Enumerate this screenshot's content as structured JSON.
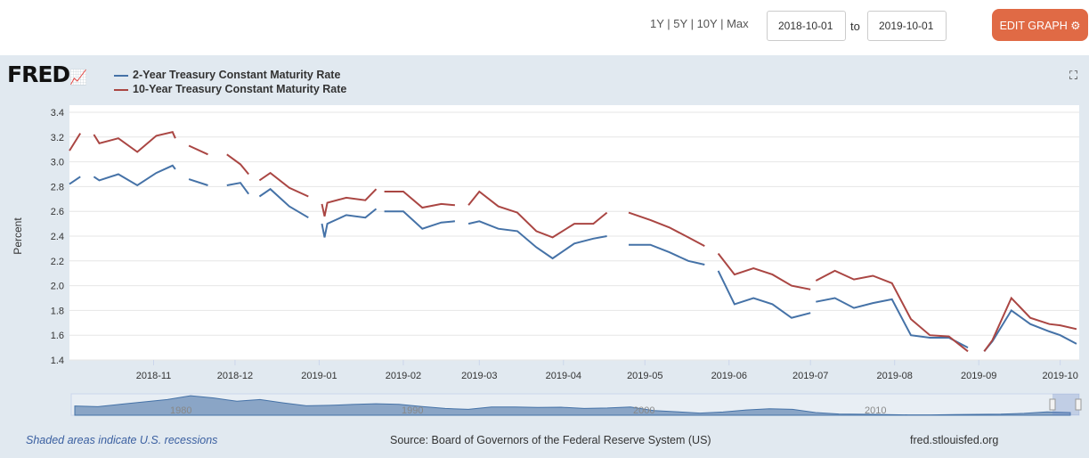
{
  "controls": {
    "ranges": [
      "1Y",
      "5Y",
      "10Y",
      "Max"
    ],
    "start_date": "2018-10-01",
    "to_label": "to",
    "end_date": "2019-10-01",
    "edit_label": "EDIT GRAPH",
    "edit_icon": "gear-icon"
  },
  "logo": "FRED",
  "fullscreen_icon": "expand-icon",
  "footer": {
    "recessions": "Shaded areas indicate U.S. recessions",
    "source": "Source: Board of Governors of the Federal Reserve System (US)",
    "site": "fred.stlouisfed.org"
  },
  "chart_data": {
    "type": "line",
    "ylabel": "Percent",
    "ylim": [
      1.4,
      3.4
    ],
    "yticks": [
      "1.4",
      "1.6",
      "1.8",
      "2.0",
      "2.2",
      "2.4",
      "2.6",
      "2.8",
      "3.0",
      "3.2",
      "3.4"
    ],
    "xticks": [
      "2018-11",
      "2018-12",
      "2019-01",
      "2019-02",
      "2019-03",
      "2019-04",
      "2019-05",
      "2019-06",
      "2019-07",
      "2019-08",
      "2019-09",
      "2019-10"
    ],
    "xlim": [
      "2018-10-01",
      "2019-10-08"
    ],
    "grid": true,
    "legend_placement": "top-left",
    "series": [
      {
        "name": "2-Year Treasury Constant Maturity Rate",
        "color": "#4572a7"
      },
      {
        "name": "10-Year Treasury Constant Maturity Rate",
        "color": "#aa4643"
      }
    ],
    "x": [
      "2018-10-01",
      "2018-10-05",
      null,
      "2018-10-10",
      "2018-10-12",
      "2018-10-19",
      "2018-10-26",
      "2018-11-02",
      "2018-11-08",
      "2018-11-09",
      null,
      "2018-11-14",
      "2018-11-21",
      null,
      "2018-11-28",
      "2018-12-03",
      "2018-12-06",
      null,
      "2018-12-10",
      "2018-12-14",
      "2018-12-21",
      "2018-12-28",
      null,
      "2019-01-02",
      "2019-01-03",
      "2019-01-04",
      "2019-01-11",
      "2019-01-18",
      "2019-01-22",
      null,
      "2019-01-25",
      "2019-02-01",
      "2019-02-08",
      "2019-02-15",
      "2019-02-20",
      null,
      "2019-02-25",
      "2019-03-01",
      "2019-03-08",
      "2019-03-15",
      "2019-03-22",
      "2019-03-28",
      "2019-04-05",
      "2019-04-12",
      "2019-04-17",
      null,
      "2019-04-25",
      "2019-05-03",
      "2019-05-10",
      "2019-05-17",
      "2019-05-23",
      null,
      "2019-05-28",
      "2019-06-03",
      "2019-06-10",
      "2019-06-17",
      "2019-06-24",
      "2019-07-01",
      null,
      "2019-07-03",
      "2019-07-10",
      "2019-07-17",
      "2019-07-24",
      "2019-07-31",
      "2019-08-07",
      "2019-08-14",
      "2019-08-21",
      "2019-08-28",
      null,
      "2019-09-03",
      "2019-09-06",
      "2019-09-13",
      "2019-09-20",
      "2019-09-27",
      "2019-10-01",
      "2019-10-07"
    ],
    "values": [
      [
        2.82,
        2.88,
        null,
        2.88,
        2.85,
        2.9,
        2.81,
        2.91,
        2.97,
        2.94,
        null,
        2.86,
        2.81,
        null,
        2.81,
        2.83,
        2.74,
        null,
        2.72,
        2.78,
        2.64,
        2.55,
        null,
        2.5,
        2.39,
        2.5,
        2.57,
        2.55,
        2.62,
        null,
        2.6,
        2.6,
        2.46,
        2.51,
        2.52,
        null,
        2.5,
        2.52,
        2.46,
        2.44,
        2.31,
        2.22,
        2.34,
        2.38,
        2.4,
        null,
        2.33,
        2.33,
        2.27,
        2.2,
        2.17,
        null,
        2.12,
        1.85,
        1.9,
        1.85,
        1.74,
        1.78,
        null,
        1.87,
        1.9,
        1.82,
        1.86,
        1.89,
        1.6,
        1.58,
        1.58,
        1.5,
        null,
        1.47,
        1.55,
        1.8,
        1.69,
        1.63,
        1.6,
        1.53
      ],
      [
        3.09,
        3.23,
        null,
        3.22,
        3.15,
        3.19,
        3.08,
        3.21,
        3.24,
        3.19,
        null,
        3.13,
        3.06,
        null,
        3.06,
        2.98,
        2.9,
        null,
        2.85,
        2.91,
        2.79,
        2.72,
        null,
        2.66,
        2.56,
        2.67,
        2.71,
        2.69,
        2.78,
        null,
        2.76,
        2.76,
        2.63,
        2.66,
        2.65,
        null,
        2.65,
        2.76,
        2.64,
        2.59,
        2.44,
        2.39,
        2.5,
        2.5,
        2.59,
        null,
        2.59,
        2.53,
        2.47,
        2.39,
        2.32,
        null,
        2.26,
        2.09,
        2.14,
        2.09,
        2.0,
        1.97,
        null,
        2.04,
        2.12,
        2.05,
        2.08,
        2.02,
        1.73,
        1.6,
        1.59,
        1.47,
        null,
        1.47,
        1.56,
        1.9,
        1.74,
        1.69,
        1.68,
        1.65
      ]
    ],
    "navigator": {
      "xticks": [
        "1980",
        "1990",
        "2000",
        "2010"
      ],
      "years": [
        1976,
        1977,
        1978,
        1979,
        1980,
        1981,
        1982,
        1983,
        1984,
        1985,
        1986,
        1987,
        1988,
        1989,
        1990,
        1991,
        1992,
        1993,
        1994,
        1995,
        1996,
        1997,
        1998,
        1999,
        2000,
        2001,
        2002,
        2003,
        2004,
        2005,
        2006,
        2007,
        2008,
        2009,
        2010,
        2011,
        2012,
        2013,
        2014,
        2015,
        2016,
        2017,
        2018,
        2019
      ],
      "values": [
        6.9,
        6.4,
        8.3,
        10,
        11.7,
        14.6,
        12.9,
        10.5,
        11.7,
        9.3,
        7.1,
        7.4,
        8.1,
        8.6,
        8.2,
        6.5,
        5.1,
        4.4,
        6.2,
        6.2,
        5.8,
        6.0,
        5.1,
        5.4,
        6.2,
        3.5,
        2.6,
        1.6,
        2.4,
        3.9,
        4.8,
        4.4,
        2.0,
        0.9,
        0.7,
        0.45,
        0.28,
        0.3,
        0.46,
        0.69,
        0.83,
        1.4,
        2.5,
        2.0
      ]
    }
  }
}
